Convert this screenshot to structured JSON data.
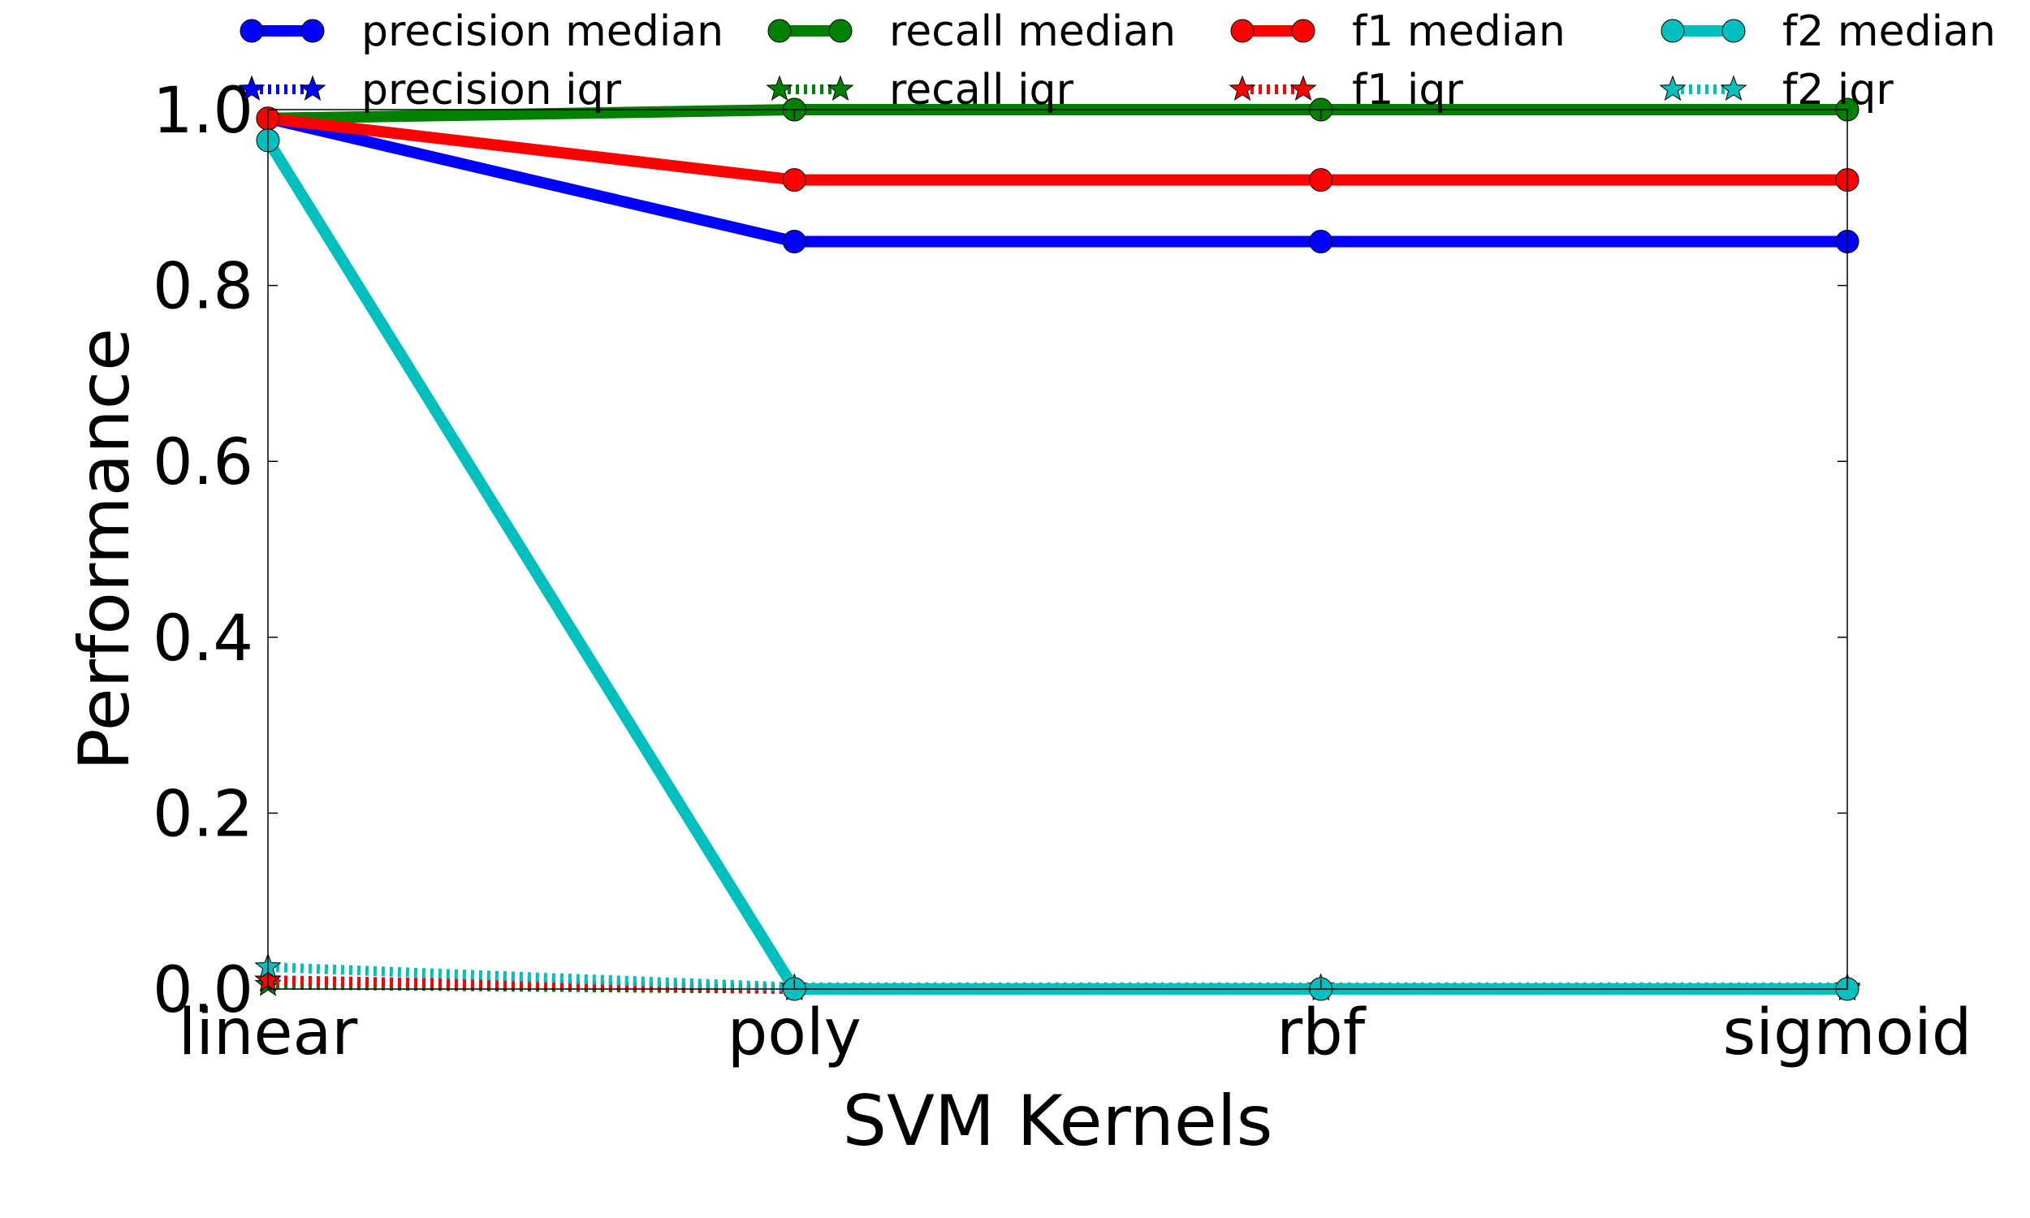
{
  "chart_data": {
    "type": "line",
    "categories": [
      "linear",
      "poly",
      "rbf",
      "sigmoid"
    ],
    "xlabel": "SVM Kernels",
    "ylabel": "Performance",
    "ylim": [
      0.0,
      1.0
    ],
    "yticks": [
      "0.0",
      "0.2",
      "0.4",
      "0.6",
      "0.8",
      "1.0"
    ],
    "grid": false,
    "legend_position": "top",
    "series": [
      {
        "name": "precision median",
        "style": "solid",
        "marker": "circle",
        "color": "#0000ff",
        "values": [
          0.99,
          0.85,
          0.85,
          0.85
        ]
      },
      {
        "name": "recall median",
        "style": "solid",
        "marker": "circle",
        "color": "#008000",
        "values": [
          0.99,
          1.0,
          1.0,
          1.0
        ]
      },
      {
        "name": "f1 median",
        "style": "solid",
        "marker": "circle",
        "color": "#ff0000",
        "values": [
          0.99,
          0.92,
          0.92,
          0.92
        ]
      },
      {
        "name": "f2 median",
        "style": "solid",
        "marker": "circle",
        "color": "#00bfbf",
        "values": [
          0.965,
          0.0,
          0.0,
          0.0
        ]
      },
      {
        "name": "precision iqr",
        "style": "dotted",
        "marker": "star",
        "color": "#0000ff",
        "values": [
          0.01,
          0.0,
          0.0,
          0.0
        ]
      },
      {
        "name": "recall iqr",
        "style": "dotted",
        "marker": "star",
        "color": "#008000",
        "values": [
          0.005,
          0.0,
          0.0,
          0.0
        ]
      },
      {
        "name": "f1 iqr",
        "style": "dotted",
        "marker": "star",
        "color": "#ff0000",
        "values": [
          0.01,
          0.0,
          0.0,
          0.0
        ]
      },
      {
        "name": "f2 iqr",
        "style": "dotted",
        "marker": "star",
        "color": "#00bfbf",
        "values": [
          0.025,
          0.002,
          0.002,
          0.002
        ]
      }
    ]
  }
}
